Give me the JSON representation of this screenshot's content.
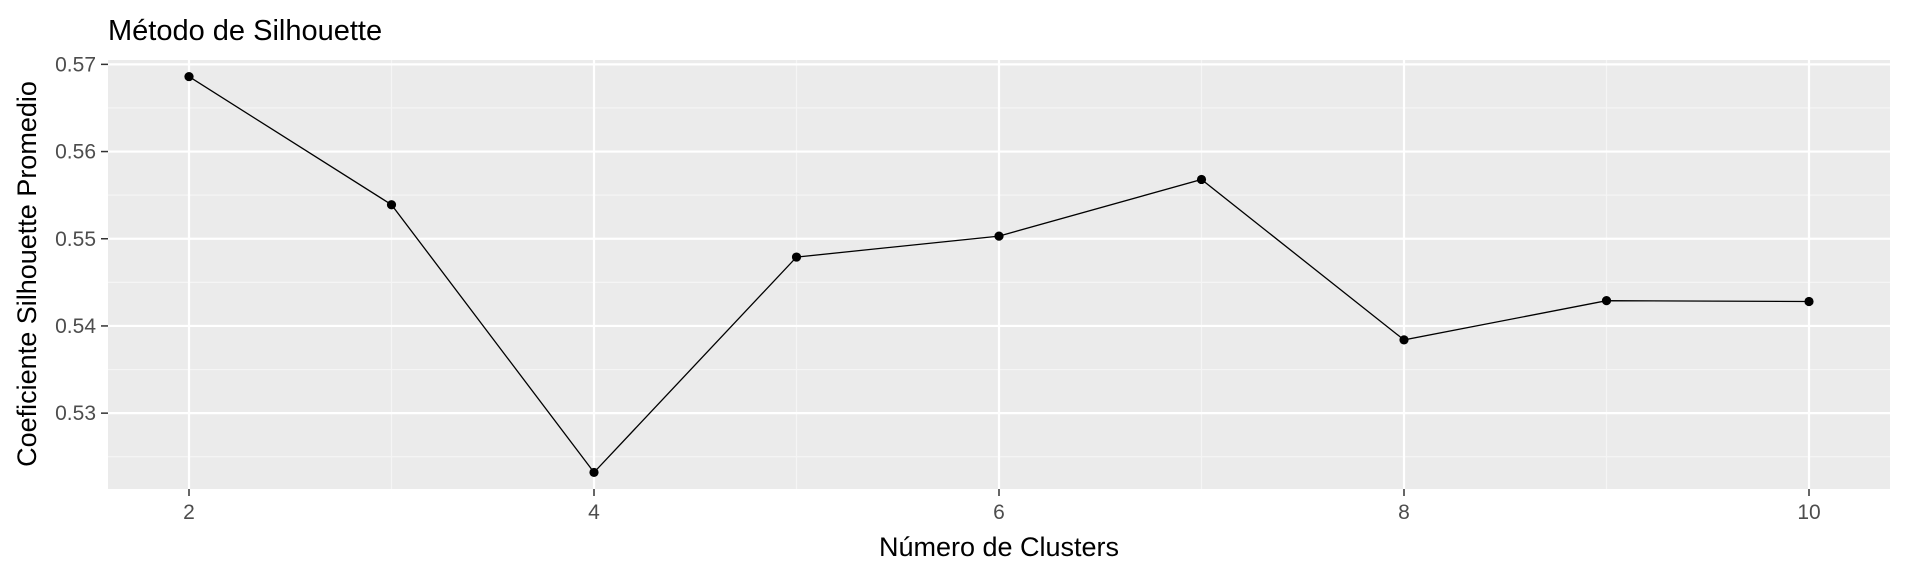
{
  "chart_data": {
    "type": "line",
    "title": "Método de Silhouette",
    "xlabel": "Número de Clusters",
    "ylabel": "Coeficiente Silhouette Promedio",
    "x": [
      2,
      3,
      4,
      5,
      6,
      7,
      8,
      9,
      10
    ],
    "series": [
      {
        "values": [
          0.5686,
          0.5539,
          0.5232,
          0.5479,
          0.5503,
          0.5568,
          0.5384,
          0.5429,
          0.5428
        ]
      }
    ],
    "x_ticks": [
      2,
      4,
      6,
      8,
      10
    ],
    "x_tick_labels": [
      "2",
      "4",
      "6",
      "8",
      "10"
    ],
    "y_ticks": [
      0.53,
      0.54,
      0.55,
      0.56,
      0.57
    ],
    "y_tick_labels": [
      "0.53",
      "0.54",
      "0.55",
      "0.56",
      "0.57"
    ],
    "xlim": [
      1.6,
      10.4
    ],
    "ylim": [
      0.5213,
      0.5705
    ],
    "grid": true,
    "legend": "none",
    "colors": {
      "panel_background": "#ebebeb",
      "grid_major": "#ffffff",
      "grid_minor": "#f5f5f5",
      "line": "#000000",
      "point": "#000000",
      "tick_label": "#4d4d4d",
      "tick_mark": "#333333"
    }
  }
}
